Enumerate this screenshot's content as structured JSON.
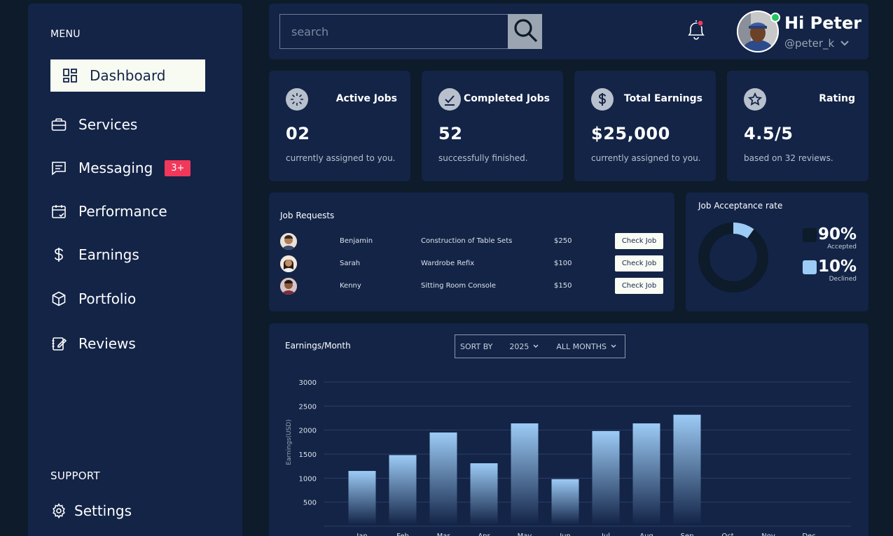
{
  "sidebar": {
    "menu_label": "MENU",
    "items": [
      {
        "label": "Dashboard",
        "icon": "dashboard-icon"
      },
      {
        "label": "Services",
        "icon": "briefcase-icon"
      },
      {
        "label": "Messaging",
        "icon": "message-icon",
        "badge": "3+"
      },
      {
        "label": "Performance",
        "icon": "calendar-check-icon"
      },
      {
        "label": "Earnings",
        "icon": "dollar-icon"
      },
      {
        "label": "Portfolio",
        "icon": "cube-icon"
      },
      {
        "label": "Reviews",
        "icon": "edit-note-icon"
      }
    ],
    "support_label": "SUPPORT",
    "settings_label": "Settings"
  },
  "header": {
    "search_placeholder": "search",
    "greeting": "Hi Peter",
    "handle": "@peter_k"
  },
  "stats": [
    {
      "title": "Active Jobs",
      "value": "02",
      "sub": "currently assigned to you.",
      "icon": "spinner-icon"
    },
    {
      "title": "Completed Jobs",
      "value": "52",
      "sub": "successfully finished.",
      "icon": "check-icon"
    },
    {
      "title": "Total Earnings",
      "value": "$25,000",
      "sub": "currently assigned to you.",
      "icon": "dollar-icon"
    },
    {
      "title": "Rating",
      "value": "4.5/5",
      "sub": "based on 32 reviews.",
      "icon": "star-icon"
    }
  ],
  "job_requests": {
    "title": "Job Requests",
    "button_label": "Check Job",
    "rows": [
      {
        "name": "Benjamin",
        "job": "Construction of Table Sets",
        "price": "$250"
      },
      {
        "name": "Sarah",
        "job": "Wardrobe Refix",
        "price": "$100"
      },
      {
        "name": "Kenny",
        "job": "Sitting Room Console",
        "price": "$150"
      }
    ]
  },
  "acceptance": {
    "title": "Job Acceptance rate",
    "accepted_pct": "90%",
    "accepted_label": "Accepted",
    "declined_pct": "10%",
    "declined_label": "Declined",
    "accepted_value": 90,
    "declined_value": 10,
    "accepted_color": "#0d1b2a",
    "declined_color": "#9ccbf5"
  },
  "earnings": {
    "title": "Earnings/Month",
    "sort_label": "SORT BY",
    "year": "2025",
    "months_filter": "ALL MONTHS"
  },
  "chart_data": {
    "type": "bar",
    "title": "Earnings/Month",
    "ylabel": "Earnings(USD)",
    "xlabel": "",
    "categories": [
      "Jan",
      "Feb",
      "Mar",
      "Apr",
      "May",
      "Jun",
      "Jul",
      "Aug",
      "Sep",
      "Oct",
      "Nov",
      "Dec"
    ],
    "values": [
      1150,
      1480,
      1950,
      1310,
      2140,
      980,
      1980,
      2140,
      2320,
      null,
      null,
      null
    ],
    "yticks": [
      500,
      1000,
      1500,
      2000,
      2500,
      3000
    ],
    "ylim": [
      0,
      3000
    ],
    "grid": true,
    "bar_color_top": "#9ccbf5",
    "bar_color_bottom": "#132447"
  }
}
